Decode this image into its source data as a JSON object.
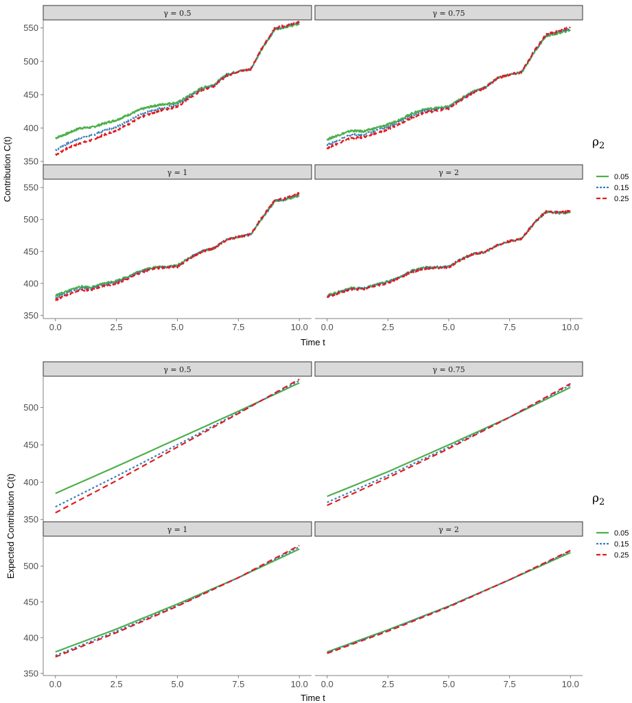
{
  "colors": {
    "0.05": "#4daf4a",
    "0.15": "#377eb8",
    "0.25": "#e41a1c"
  },
  "chart_data": [
    {
      "type": "line",
      "xlabel": "Time t",
      "ylabel": "Contribution C(t)",
      "xlim": [
        -0.5,
        10.5
      ],
      "xticks": [
        0.0,
        2.5,
        5.0,
        7.5,
        10.0
      ],
      "xtick_labels": [
        "0.0",
        "2.5",
        "5.0",
        "7.5",
        "10.0"
      ],
      "ylim": [
        345,
        562
      ],
      "yticks": [
        350,
        400,
        450,
        500,
        550
      ],
      "grid": false,
      "legend": {
        "title": "ρ2",
        "entries": [
          "0.05",
          "0.15",
          "0.25"
        ],
        "position": "right"
      },
      "stochastic": true,
      "facets": [
        {
          "label": "γ = 0.5",
          "series": [
            {
              "name": "0.05",
              "x": [
                0,
                0.5,
                1,
                1.5,
                2,
                2.5,
                3,
                3.5,
                4,
                4.5,
                5,
                5.5,
                6,
                6.5,
                7,
                7.5,
                8,
                8.5,
                9,
                9.5,
                10
              ],
              "y": [
                385,
                392,
                400,
                401,
                407,
                412,
                420,
                428,
                433,
                436,
                438,
                449,
                460,
                465,
                480,
                485,
                488,
                520,
                548,
                552,
                556
              ]
            },
            {
              "name": "0.15",
              "x": [
                0,
                0.5,
                1,
                1.5,
                2,
                2.5,
                3,
                3.5,
                4,
                4.5,
                5,
                5.5,
                6,
                6.5,
                7,
                7.5,
                8,
                8.5,
                9,
                9.5,
                10
              ],
              "y": [
                367,
                377,
                385,
                389,
                396,
                402,
                411,
                420,
                427,
                431,
                435,
                447,
                458,
                464,
                479,
                485,
                488,
                521,
                549,
                553,
                558
              ]
            },
            {
              "name": "0.25",
              "x": [
                0,
                0.5,
                1,
                1.5,
                2,
                2.5,
                3,
                3.5,
                4,
                4.5,
                5,
                5.5,
                6,
                6.5,
                7,
                7.5,
                8,
                8.5,
                9,
                9.5,
                10
              ],
              "y": [
                360,
                370,
                377,
                382,
                390,
                397,
                406,
                416,
                423,
                428,
                432,
                445,
                457,
                463,
                478,
                485,
                488,
                522,
                550,
                554,
                559
              ]
            }
          ]
        },
        {
          "label": "γ = 0.75",
          "series": [
            {
              "name": "0.05",
              "x": [
                0,
                0.5,
                1,
                1.5,
                2,
                2.5,
                3,
                3.5,
                4,
                4.5,
                5,
                5.5,
                6,
                6.5,
                7,
                7.5,
                8,
                8.5,
                9,
                9.5,
                10
              ],
              "y": [
                383,
                390,
                396,
                395,
                400,
                405,
                413,
                422,
                428,
                430,
                432,
                444,
                455,
                461,
                475,
                480,
                483,
                513,
                538,
                542,
                547
              ]
            },
            {
              "name": "0.15",
              "x": [
                0,
                0.5,
                1,
                1.5,
                2,
                2.5,
                3,
                3.5,
                4,
                4.5,
                5,
                5.5,
                6,
                6.5,
                7,
                7.5,
                8,
                8.5,
                9,
                9.5,
                10
              ],
              "y": [
                375,
                383,
                390,
                390,
                396,
                402,
                410,
                419,
                426,
                428,
                431,
                443,
                454,
                461,
                475,
                480,
                484,
                514,
                539,
                544,
                549
              ]
            },
            {
              "name": "0.25",
              "x": [
                0,
                0.5,
                1,
                1.5,
                2,
                2.5,
                3,
                3.5,
                4,
                4.5,
                5,
                5.5,
                6,
                6.5,
                7,
                7.5,
                8,
                8.5,
                9,
                9.5,
                10
              ],
              "y": [
                370,
                378,
                385,
                386,
                392,
                398,
                407,
                416,
                423,
                426,
                429,
                442,
                453,
                460,
                475,
                480,
                484,
                515,
                540,
                545,
                551
              ]
            }
          ]
        },
        {
          "label": "γ = 1",
          "series": [
            {
              "name": "0.05",
              "x": [
                0,
                0.5,
                1,
                1.5,
                2,
                2.5,
                3,
                3.5,
                4,
                4.5,
                5,
                5.5,
                6,
                6.5,
                7,
                7.5,
                8,
                8.5,
                9,
                9.5,
                10
              ],
              "y": [
                381,
                388,
                395,
                394,
                400,
                404,
                411,
                420,
                425,
                426,
                428,
                440,
                450,
                455,
                468,
                473,
                476,
                503,
                528,
                532,
                537
              ]
            },
            {
              "name": "0.15",
              "x": [
                0,
                0.5,
                1,
                1.5,
                2,
                2.5,
                3,
                3.5,
                4,
                4.5,
                5,
                5.5,
                6,
                6.5,
                7,
                7.5,
                8,
                8.5,
                9,
                9.5,
                10
              ],
              "y": [
                377,
                385,
                392,
                392,
                398,
                402,
                410,
                419,
                424,
                426,
                427,
                440,
                450,
                455,
                468,
                473,
                476,
                504,
                529,
                533,
                539
              ]
            },
            {
              "name": "0.25",
              "x": [
                0,
                0.5,
                1,
                1.5,
                2,
                2.5,
                3,
                3.5,
                4,
                4.5,
                5,
                5.5,
                6,
                6.5,
                7,
                7.5,
                8,
                8.5,
                9,
                9.5,
                10
              ],
              "y": [
                374,
                382,
                389,
                390,
                396,
                400,
                408,
                417,
                423,
                425,
                426,
                439,
                449,
                455,
                468,
                473,
                477,
                505,
                530,
                534,
                541
              ]
            }
          ]
        },
        {
          "label": "γ = 2",
          "series": [
            {
              "name": "0.05",
              "x": [
                0,
                0.5,
                1,
                1.5,
                2,
                2.5,
                3,
                3.5,
                4,
                4.5,
                5,
                5.5,
                6,
                6.5,
                7,
                7.5,
                8,
                8.5,
                9,
                9.5,
                10
              ],
              "y": [
                381,
                387,
                393,
                392,
                398,
                403,
                410,
                420,
                425,
                425,
                426,
                438,
                446,
                449,
                460,
                466,
                470,
                494,
                512,
                510,
                511
              ]
            },
            {
              "name": "0.15",
              "x": [
                0,
                0.5,
                1,
                1.5,
                2,
                2.5,
                3,
                3.5,
                4,
                4.5,
                5,
                5.5,
                6,
                6.5,
                7,
                7.5,
                8,
                8.5,
                9,
                9.5,
                10
              ],
              "y": [
                380,
                386,
                392,
                392,
                397,
                402,
                410,
                419,
                424,
                425,
                426,
                438,
                446,
                449,
                460,
                466,
                470,
                494,
                512,
                511,
                512
              ]
            },
            {
              "name": "0.25",
              "x": [
                0,
                0.5,
                1,
                1.5,
                2,
                2.5,
                3,
                3.5,
                4,
                4.5,
                5,
                5.5,
                6,
                6.5,
                7,
                7.5,
                8,
                8.5,
                9,
                9.5,
                10
              ],
              "y": [
                379,
                385,
                391,
                391,
                396,
                401,
                409,
                418,
                423,
                424,
                425,
                437,
                446,
                449,
                460,
                466,
                470,
                495,
                513,
                511,
                513
              ]
            }
          ]
        }
      ]
    },
    {
      "type": "line",
      "xlabel": "Time t",
      "ylabel": "Expected Contribution C(t)",
      "xlim": [
        -0.5,
        10.5
      ],
      "xticks": [
        0.0,
        2.5,
        5.0,
        7.5,
        10.0
      ],
      "xtick_labels": [
        "0.0",
        "2.5",
        "5.0",
        "7.5",
        "10.0"
      ],
      "ylim": [
        347,
        541
      ],
      "yticks": [
        350,
        400,
        450,
        500
      ],
      "grid": false,
      "legend": {
        "title": "ρ2",
        "entries": [
          "0.05",
          "0.15",
          "0.25"
        ],
        "position": "right"
      },
      "stochastic": false,
      "facets": [
        {
          "label": "γ = 0.5",
          "series": [
            {
              "name": "0.05",
              "x": [
                0,
                2.5,
                5,
                7.5,
                10
              ],
              "y": [
                385,
                421,
                458,
                495,
                533
              ]
            },
            {
              "name": "0.15",
              "x": [
                0,
                2.5,
                5,
                7.5,
                10
              ],
              "y": [
                367,
                408,
                450,
                493,
                536
              ]
            },
            {
              "name": "0.25",
              "x": [
                0,
                2.5,
                5,
                7.5,
                10
              ],
              "y": [
                359,
                402,
                447,
                492,
                538
              ]
            }
          ]
        },
        {
          "label": "γ = 0.75",
          "series": [
            {
              "name": "0.05",
              "x": [
                0,
                2.5,
                5,
                7.5,
                10
              ],
              "y": [
                381,
                414,
                450,
                487,
                527
              ]
            },
            {
              "name": "0.15",
              "x": [
                0,
                2.5,
                5,
                7.5,
                10
              ],
              "y": [
                373,
                409,
                447,
                487,
                530
              ]
            },
            {
              "name": "0.25",
              "x": [
                0,
                2.5,
                5,
                7.5,
                10
              ],
              "y": [
                369,
                406,
                445,
                487,
                532
              ]
            }
          ]
        },
        {
          "label": "γ = 1",
          "series": [
            {
              "name": "0.05",
              "x": [
                0,
                2.5,
                5,
                7.5,
                10
              ],
              "y": [
                380,
                412,
                447,
                484,
                524
              ]
            },
            {
              "name": "0.15",
              "x": [
                0,
                2.5,
                5,
                7.5,
                10
              ],
              "y": [
                375,
                409,
                445,
                484,
                527
              ]
            },
            {
              "name": "0.25",
              "x": [
                0,
                2.5,
                5,
                7.5,
                10
              ],
              "y": [
                373,
                407,
                444,
                484,
                529
              ]
            }
          ]
        },
        {
          "label": "γ = 2",
          "series": [
            {
              "name": "0.05",
              "x": [
                0,
                2.5,
                5,
                7.5,
                10
              ],
              "y": [
                380,
                411,
                444,
                481,
                519
              ]
            },
            {
              "name": "0.15",
              "x": [
                0,
                2.5,
                5,
                7.5,
                10
              ],
              "y": [
                379,
                410,
                444,
                481,
                521
              ]
            },
            {
              "name": "0.25",
              "x": [
                0,
                2.5,
                5,
                7.5,
                10
              ],
              "y": [
                378,
                409,
                443,
                481,
                522
              ]
            }
          ]
        }
      ]
    }
  ]
}
